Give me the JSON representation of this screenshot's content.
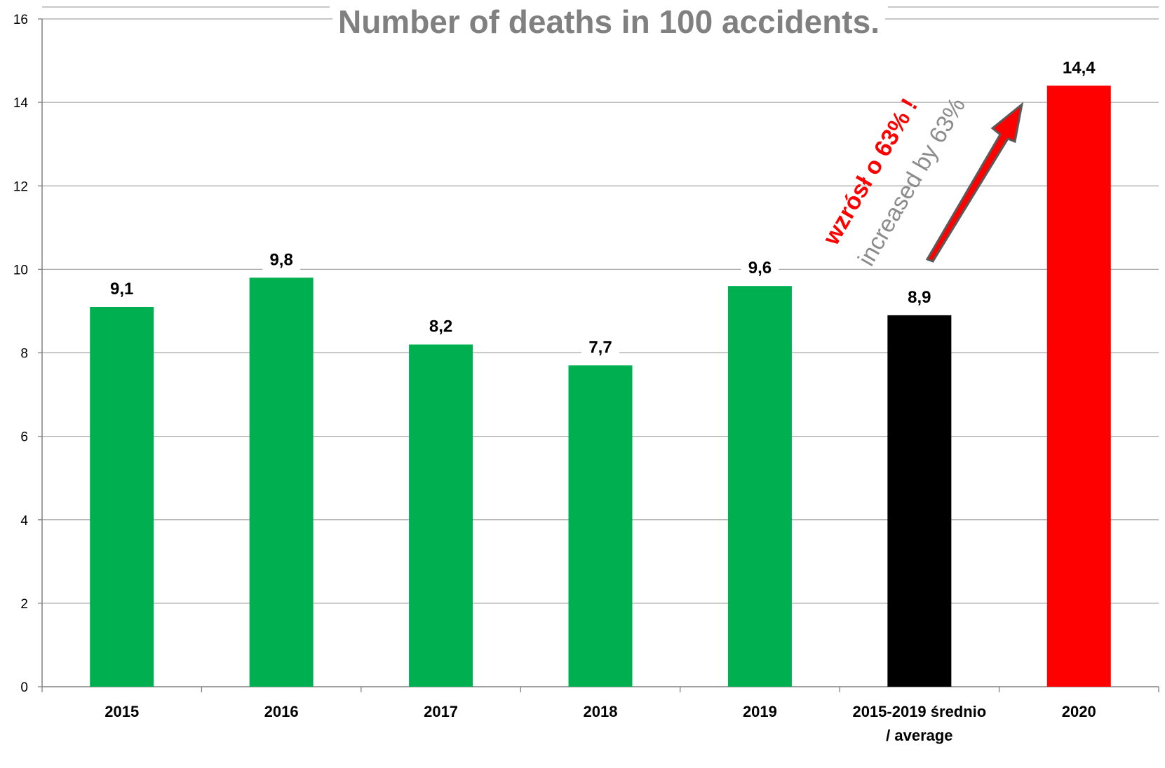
{
  "chart_data": {
    "type": "bar",
    "title": "Number of deaths in 100 accidents.",
    "categories": [
      "2015",
      "2016",
      "2017",
      "2018",
      "2019",
      "2015-2019 średnio\n/ average",
      "2020"
    ],
    "values": [
      9.1,
      9.8,
      8.2,
      7.7,
      9.6,
      8.9,
      14.4
    ],
    "data_labels": [
      "9,1",
      "9,8",
      "8,2",
      "7,7",
      "9,6",
      "8,9",
      "14,4"
    ],
    "bar_colors": [
      "#00b050",
      "#00b050",
      "#00b050",
      "#00b050",
      "#00b050",
      "#000000",
      "#ff0000"
    ],
    "ylim": [
      0,
      16
    ],
    "yticks": [
      0,
      2,
      4,
      6,
      8,
      10,
      12,
      14,
      16
    ],
    "grid": true,
    "legend": "none",
    "annotations": {
      "red_text": "wzrósł o 63% !",
      "gray_text": "increased by 63%",
      "arrow_color": "#ff0000"
    }
  }
}
